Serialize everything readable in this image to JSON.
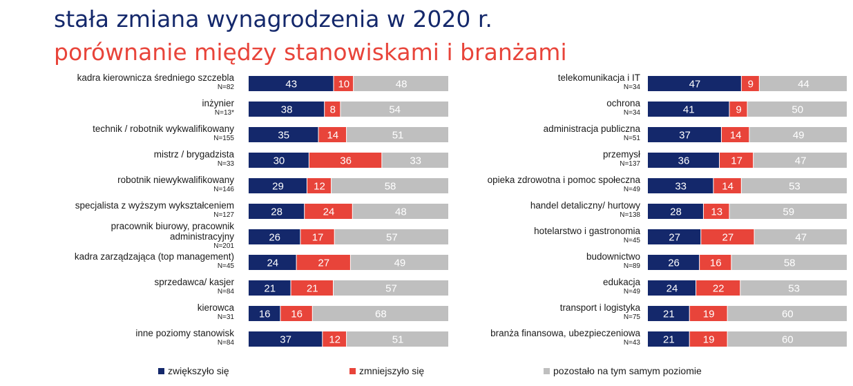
{
  "title": "stała zmiana wynagrodzenia w 2020 r.",
  "subtitle": "porównanie między stanowiskami i branżami",
  "colors": {
    "increased": "#14286b",
    "decreased": "#e8443a",
    "same": "#bfbfbf"
  },
  "legend": [
    {
      "key": "increased",
      "label": "zwiększyło się"
    },
    {
      "key": "decreased",
      "label": "zmniejszyło się"
    },
    {
      "key": "same",
      "label": "pozostało na tym samym poziomie"
    }
  ],
  "chart_data": [
    {
      "type": "bar",
      "orientation": "horizontal",
      "stacked": true,
      "unit": "%",
      "categories": [
        {
          "label": [
            "kadra kierownicza średniego szczebla"
          ],
          "n": "N=82"
        },
        {
          "label": [
            "inżynier"
          ],
          "n": "N=13*"
        },
        {
          "label": [
            "technik / robotnik wykwalifikowany"
          ],
          "n": "N=155"
        },
        {
          "label": [
            "mistrz / brygadzista"
          ],
          "n": "N=33"
        },
        {
          "label": [
            "robotnik niewykwalifikowany"
          ],
          "n": "N=146"
        },
        {
          "label": [
            "specjalista z wyższym wykształceniem"
          ],
          "n": "N=127"
        },
        {
          "label": [
            "pracownik biurowy, pracownik",
            "administracyjny"
          ],
          "n": "N=201"
        },
        {
          "label": [
            "kadra zarządzająca (top management)"
          ],
          "n": "N=45"
        },
        {
          "label": [
            "sprzedawca/ kasjer"
          ],
          "n": "N=84"
        },
        {
          "label": [
            "kierowca"
          ],
          "n": "N=31"
        },
        {
          "label": [
            "inne poziomy stanowisk"
          ],
          "n": "N=84"
        }
      ],
      "series": [
        {
          "name": "zwiększyło się",
          "key": "increased",
          "values": [
            43,
            38,
            35,
            30,
            29,
            28,
            26,
            24,
            21,
            16,
            37
          ]
        },
        {
          "name": "zmniejszyło się",
          "key": "decreased",
          "values": [
            10,
            8,
            14,
            36,
            12,
            24,
            17,
            27,
            21,
            16,
            12
          ]
        },
        {
          "name": "pozostało na tym samym poziomie",
          "key": "same",
          "values": [
            48,
            54,
            51,
            33,
            58,
            48,
            57,
            49,
            57,
            68,
            51
          ]
        }
      ]
    },
    {
      "type": "bar",
      "orientation": "horizontal",
      "stacked": true,
      "unit": "%",
      "categories": [
        {
          "label": [
            "telekomunikacja i IT"
          ],
          "n": "N=34"
        },
        {
          "label": [
            "ochrona"
          ],
          "n": "N=34"
        },
        {
          "label": [
            "administracja publiczna"
          ],
          "n": "N=51"
        },
        {
          "label": [
            "przemysł"
          ],
          "n": "N=137"
        },
        {
          "label": [
            "opieka zdrowotna i pomoc społeczna"
          ],
          "n": "N=49"
        },
        {
          "label": [
            "handel detaliczny/ hurtowy"
          ],
          "n": "N=138"
        },
        {
          "label": [
            "hotelarstwo i gastronomia"
          ],
          "n": "N=45"
        },
        {
          "label": [
            "budownictwo"
          ],
          "n": "N=89"
        },
        {
          "label": [
            "edukacja"
          ],
          "n": "N=49"
        },
        {
          "label": [
            "transport i logistyka"
          ],
          "n": "N=75"
        },
        {
          "label": [
            "branża finansowa, ubezpieczeniowa"
          ],
          "n": "N=43"
        }
      ],
      "series": [
        {
          "name": "zwiększyło się",
          "key": "increased",
          "values": [
            47,
            41,
            37,
            36,
            33,
            28,
            27,
            26,
            24,
            21,
            21
          ]
        },
        {
          "name": "zmniejszyło się",
          "key": "decreased",
          "values": [
            9,
            9,
            14,
            17,
            14,
            13,
            27,
            16,
            22,
            19,
            19
          ]
        },
        {
          "name": "pozostało na tym samym poziomie",
          "key": "same",
          "values": [
            44,
            50,
            49,
            47,
            53,
            59,
            47,
            58,
            53,
            60,
            60
          ]
        }
      ]
    }
  ]
}
